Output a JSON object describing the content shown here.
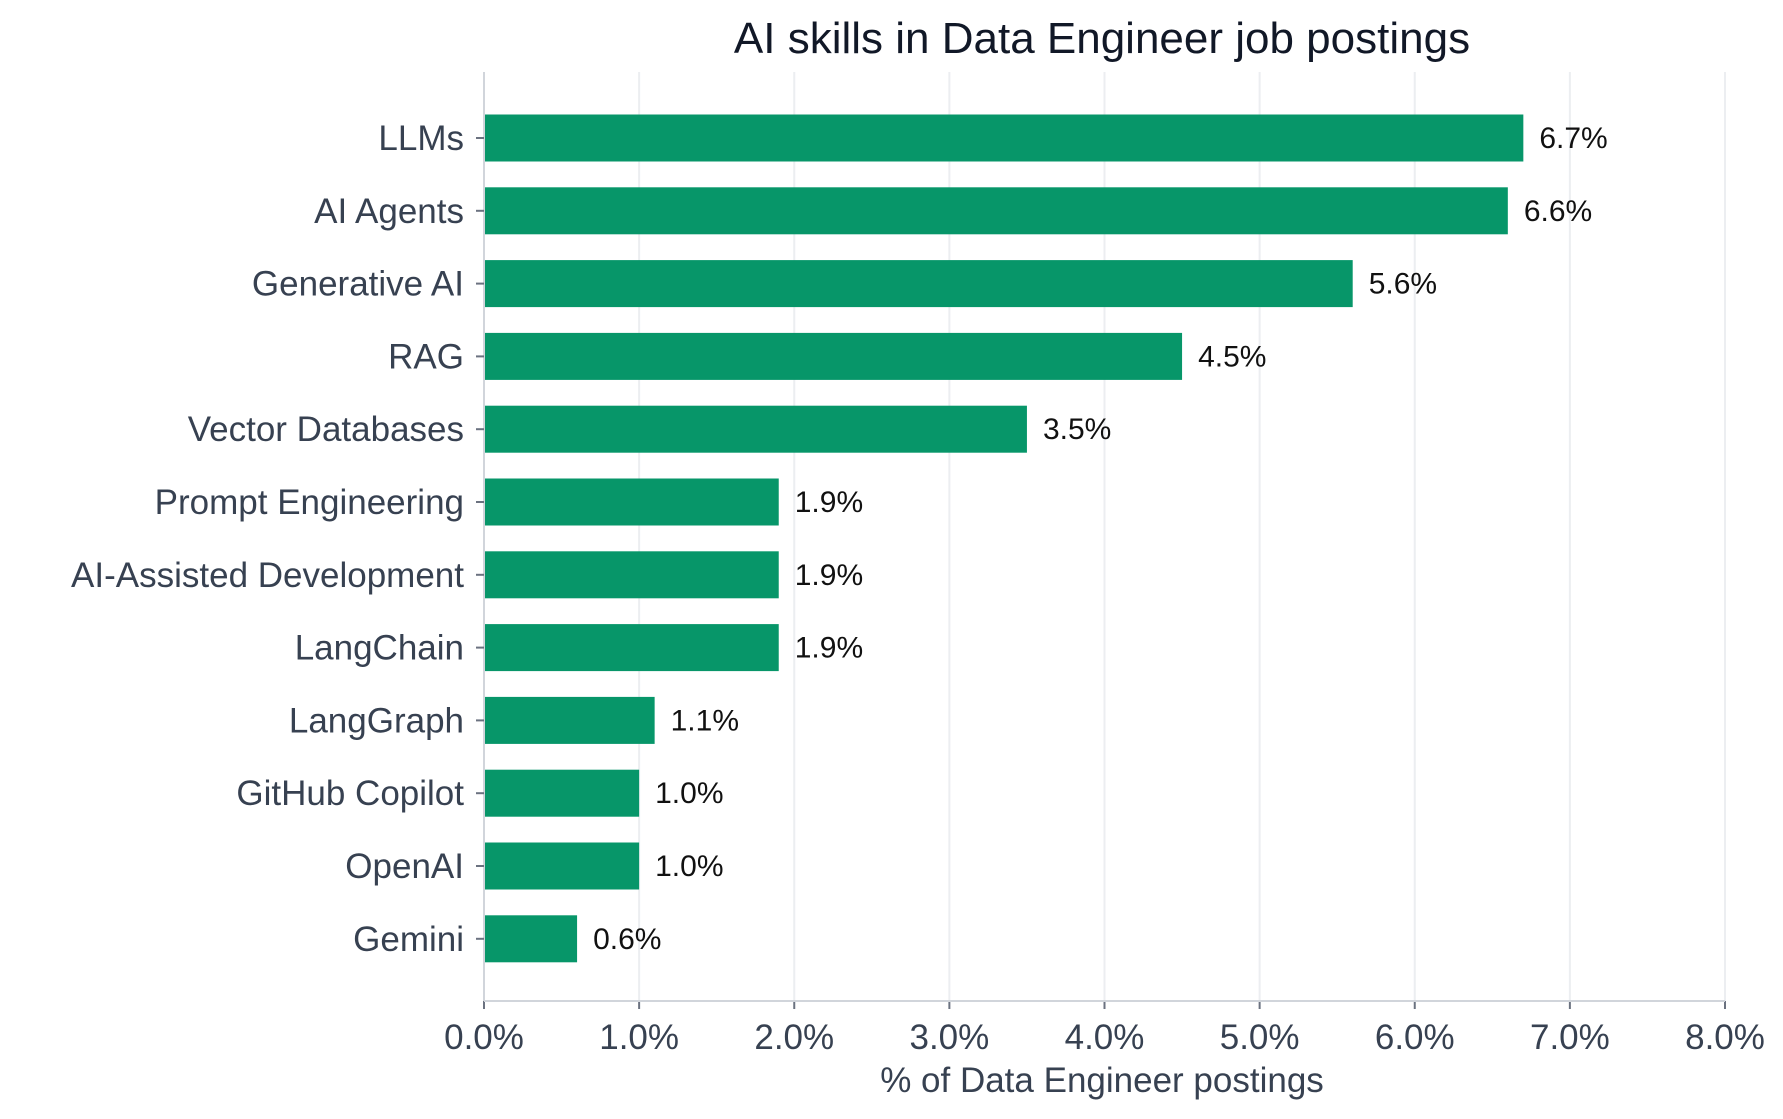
{
  "chart_data": {
    "type": "bar",
    "orientation": "horizontal",
    "title": "AI skills in Data Engineer job postings",
    "xlabel": "% of Data Engineer postings",
    "ylabel": "",
    "categories": [
      "LLMs",
      "AI Agents",
      "Generative AI",
      "RAG",
      "Vector Databases",
      "Prompt Engineering",
      "AI-Assisted Development",
      "LangChain",
      "LangGraph",
      "GitHub Copilot",
      "OpenAI",
      "Gemini"
    ],
    "values": [
      6.7,
      6.6,
      5.6,
      4.5,
      3.5,
      1.9,
      1.9,
      1.9,
      1.1,
      1.0,
      1.0,
      0.6
    ],
    "data_labels": [
      "6.7%",
      "6.6%",
      "5.6%",
      "4.5%",
      "3.5%",
      "1.9%",
      "1.9%",
      "1.9%",
      "1.1%",
      "1.0%",
      "1.0%",
      "0.6%"
    ],
    "xlim": [
      0,
      8
    ],
    "xticks": [
      0,
      1,
      2,
      3,
      4,
      5,
      6,
      7,
      8
    ],
    "xtick_labels": [
      "0.0%",
      "1.0%",
      "2.0%",
      "3.0%",
      "4.0%",
      "5.0%",
      "6.0%",
      "7.0%",
      "8.0%"
    ],
    "grid": "vertical",
    "legend": "none",
    "bar_color": "#079669"
  }
}
